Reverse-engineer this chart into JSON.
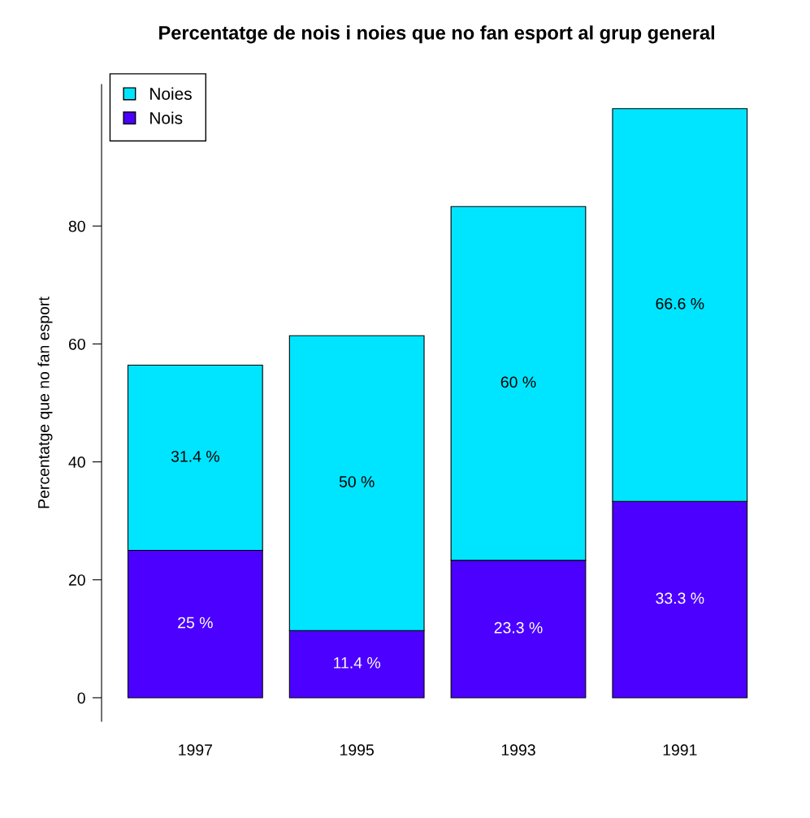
{
  "chart_data": {
    "type": "bar",
    "stacked": true,
    "title": "Percentatge de nois i noies que no fan esport al grup general",
    "ylabel": "Percentatge que no fan esport",
    "categories": [
      "1997",
      "1995",
      "1993",
      "1991"
    ],
    "series": [
      {
        "name": "Nois",
        "color": "#4c00ff",
        "values": [
          25,
          11.4,
          23.3,
          33.3
        ],
        "value_labels": [
          "25 %",
          "11.4 %",
          "23.3 %",
          "33.3 %"
        ]
      },
      {
        "name": "Noies",
        "color": "#00e5ff",
        "values": [
          31.4,
          50,
          60,
          66.6
        ],
        "value_labels": [
          "31.4 %",
          "50 %",
          "60 %",
          "66.6 %"
        ]
      }
    ],
    "ylim": [
      -4,
      104
    ],
    "yticks": [
      0,
      20,
      40,
      60,
      80
    ],
    "grid": false,
    "legend": "top left"
  }
}
